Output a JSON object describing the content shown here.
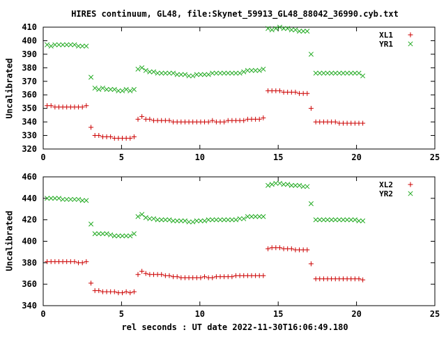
{
  "title": "HIRES continuum, GL48, file:Skynet_59913_GL48_88042_36990.cyb.txt",
  "xlabel": "rel seconds : UT date 2022-11-30T16:06:49.180",
  "colors": {
    "red": "#cc0000",
    "green": "#22aa22",
    "axis": "#000000"
  },
  "chart_data": [
    {
      "type": "scatter",
      "title": "HIRES continuum, GL48, file:Skynet_59913_GL48_88042_36990.cyb.txt",
      "xlabel": "",
      "ylabel": "Uncalibrated",
      "xlim": [
        0,
        25
      ],
      "ylim": [
        320,
        410
      ],
      "xticks": [
        0,
        5,
        10,
        15,
        20,
        25
      ],
      "yticks": [
        320,
        330,
        340,
        350,
        360,
        370,
        380,
        390,
        400,
        410
      ],
      "grid": false,
      "legend": "top-right",
      "series": [
        {
          "name": "XL1",
          "marker": "plus",
          "color": "#cc0000",
          "x": [
            0.25,
            0.5,
            0.75,
            1.0,
            1.25,
            1.5,
            1.75,
            2.0,
            2.25,
            2.5,
            2.75,
            3.05,
            3.3,
            3.55,
            3.8,
            4.05,
            4.3,
            4.55,
            4.8,
            5.05,
            5.3,
            5.55,
            5.8,
            6.05,
            6.3,
            6.55,
            6.8,
            7.05,
            7.3,
            7.55,
            7.8,
            8.05,
            8.3,
            8.55,
            8.8,
            9.05,
            9.3,
            9.55,
            9.8,
            10.05,
            10.3,
            10.55,
            10.8,
            11.05,
            11.3,
            11.55,
            11.8,
            12.05,
            12.3,
            12.55,
            12.8,
            13.05,
            13.3,
            13.55,
            13.8,
            14.05,
            14.35,
            14.6,
            14.85,
            15.1,
            15.35,
            15.6,
            15.85,
            16.1,
            16.35,
            16.6,
            16.85,
            17.1,
            17.4,
            17.65,
            17.9,
            18.15,
            18.4,
            18.65,
            18.9,
            19.15,
            19.4,
            19.65,
            19.9,
            20.15,
            20.4
          ],
          "y": [
            352,
            352,
            351,
            351,
            351,
            351,
            351,
            351,
            351,
            351,
            352,
            336,
            330,
            330,
            329,
            329,
            329,
            328,
            328,
            328,
            328,
            328,
            329,
            342,
            344,
            342,
            342,
            341,
            341,
            341,
            341,
            341,
            340,
            340,
            340,
            340,
            340,
            340,
            340,
            340,
            340,
            340,
            341,
            340,
            340,
            340,
            341,
            341,
            341,
            341,
            341,
            342,
            342,
            342,
            342,
            343,
            363,
            363,
            363,
            363,
            362,
            362,
            362,
            362,
            361,
            361,
            361,
            350,
            340,
            340,
            340,
            340,
            340,
            340,
            339,
            339,
            339,
            339,
            339,
            339,
            339
          ]
        },
        {
          "name": "YR1",
          "marker": "cross",
          "color": "#22aa22",
          "x": [
            0.25,
            0.5,
            0.75,
            1.0,
            1.25,
            1.5,
            1.75,
            2.0,
            2.25,
            2.5,
            2.75,
            3.05,
            3.3,
            3.55,
            3.8,
            4.05,
            4.3,
            4.55,
            4.8,
            5.05,
            5.3,
            5.55,
            5.8,
            6.05,
            6.3,
            6.55,
            6.8,
            7.05,
            7.3,
            7.55,
            7.8,
            8.05,
            8.3,
            8.55,
            8.8,
            9.05,
            9.3,
            9.55,
            9.8,
            10.05,
            10.3,
            10.55,
            10.8,
            11.05,
            11.3,
            11.55,
            11.8,
            12.05,
            12.3,
            12.55,
            12.8,
            13.05,
            13.3,
            13.55,
            13.8,
            14.05,
            14.35,
            14.6,
            14.85,
            15.1,
            15.35,
            15.6,
            15.85,
            16.1,
            16.35,
            16.6,
            16.85,
            17.1,
            17.4,
            17.65,
            17.9,
            18.15,
            18.4,
            18.65,
            18.9,
            19.15,
            19.4,
            19.65,
            19.9,
            20.15,
            20.4
          ],
          "y": [
            397,
            396,
            397,
            397,
            397,
            397,
            397,
            397,
            396,
            396,
            396,
            373,
            365,
            364,
            365,
            364,
            364,
            364,
            363,
            363,
            364,
            363,
            364,
            379,
            380,
            378,
            377,
            377,
            376,
            376,
            376,
            376,
            376,
            375,
            375,
            375,
            374,
            374,
            375,
            375,
            375,
            375,
            376,
            376,
            376,
            376,
            376,
            376,
            376,
            376,
            377,
            378,
            378,
            378,
            378,
            379,
            409,
            408,
            409,
            410,
            409,
            409,
            408,
            408,
            407,
            407,
            407,
            390,
            376,
            376,
            376,
            376,
            376,
            376,
            376,
            376,
            376,
            376,
            376,
            376,
            374
          ]
        }
      ]
    },
    {
      "type": "scatter",
      "title": "",
      "xlabel": "rel seconds : UT date 2022-11-30T16:06:49.180",
      "ylabel": "Uncalibrated",
      "xlim": [
        0,
        25
      ],
      "ylim": [
        340,
        460
      ],
      "xticks": [
        0,
        5,
        10,
        15,
        20,
        25
      ],
      "yticks": [
        340,
        360,
        380,
        400,
        420,
        440,
        460
      ],
      "grid": false,
      "legend": "top-right",
      "series": [
        {
          "name": "XL2",
          "marker": "plus",
          "color": "#cc0000",
          "x": [
            0.25,
            0.5,
            0.75,
            1.0,
            1.25,
            1.5,
            1.75,
            2.0,
            2.25,
            2.5,
            2.75,
            3.05,
            3.3,
            3.55,
            3.8,
            4.05,
            4.3,
            4.55,
            4.8,
            5.05,
            5.3,
            5.55,
            5.8,
            6.05,
            6.3,
            6.55,
            6.8,
            7.05,
            7.3,
            7.55,
            7.8,
            8.05,
            8.3,
            8.55,
            8.8,
            9.05,
            9.3,
            9.55,
            9.8,
            10.05,
            10.3,
            10.55,
            10.8,
            11.05,
            11.3,
            11.55,
            11.8,
            12.05,
            12.3,
            12.55,
            12.8,
            13.05,
            13.3,
            13.55,
            13.8,
            14.05,
            14.35,
            14.6,
            14.85,
            15.1,
            15.35,
            15.6,
            15.85,
            16.1,
            16.35,
            16.6,
            16.85,
            17.1,
            17.4,
            17.65,
            17.9,
            18.15,
            18.4,
            18.65,
            18.9,
            19.15,
            19.4,
            19.65,
            19.9,
            20.15,
            20.4
          ],
          "y": [
            381,
            381,
            381,
            381,
            381,
            381,
            381,
            381,
            380,
            380,
            381,
            361,
            354,
            354,
            353,
            353,
            353,
            353,
            352,
            352,
            353,
            352,
            353,
            369,
            372,
            370,
            369,
            369,
            369,
            369,
            368,
            368,
            367,
            367,
            366,
            366,
            366,
            366,
            366,
            366,
            367,
            366,
            366,
            367,
            367,
            367,
            367,
            367,
            368,
            368,
            368,
            368,
            368,
            368,
            368,
            368,
            393,
            394,
            394,
            394,
            393,
            393,
            393,
            392,
            392,
            392,
            392,
            379,
            365,
            365,
            365,
            365,
            365,
            365,
            365,
            365,
            365,
            365,
            365,
            365,
            364
          ]
        },
        {
          "name": "YR2",
          "marker": "cross",
          "color": "#22aa22",
          "x": [
            0.25,
            0.5,
            0.75,
            1.0,
            1.25,
            1.5,
            1.75,
            2.0,
            2.25,
            2.5,
            2.75,
            3.05,
            3.3,
            3.55,
            3.8,
            4.05,
            4.3,
            4.55,
            4.8,
            5.05,
            5.3,
            5.55,
            5.8,
            6.05,
            6.3,
            6.55,
            6.8,
            7.05,
            7.3,
            7.55,
            7.8,
            8.05,
            8.3,
            8.55,
            8.8,
            9.05,
            9.3,
            9.55,
            9.8,
            10.05,
            10.3,
            10.55,
            10.8,
            11.05,
            11.3,
            11.55,
            11.8,
            12.05,
            12.3,
            12.55,
            12.8,
            13.05,
            13.3,
            13.55,
            13.8,
            14.05,
            14.35,
            14.6,
            14.85,
            15.1,
            15.35,
            15.6,
            15.85,
            16.1,
            16.35,
            16.6,
            16.85,
            17.1,
            17.4,
            17.65,
            17.9,
            18.15,
            18.4,
            18.65,
            18.9,
            19.15,
            19.4,
            19.65,
            19.9,
            20.15,
            20.4
          ],
          "y": [
            440,
            440,
            440,
            440,
            439,
            439,
            439,
            439,
            439,
            438,
            438,
            416,
            407,
            407,
            407,
            407,
            406,
            405,
            405,
            405,
            405,
            405,
            407,
            423,
            425,
            422,
            421,
            421,
            420,
            420,
            420,
            420,
            419,
            419,
            419,
            419,
            418,
            418,
            419,
            419,
            419,
            420,
            420,
            420,
            420,
            420,
            420,
            420,
            420,
            421,
            421,
            423,
            423,
            423,
            423,
            423,
            452,
            453,
            454,
            454,
            453,
            453,
            452,
            452,
            452,
            451,
            451,
            435,
            420,
            420,
            420,
            420,
            420,
            420,
            420,
            420,
            420,
            420,
            420,
            419,
            419
          ]
        }
      ]
    }
  ]
}
